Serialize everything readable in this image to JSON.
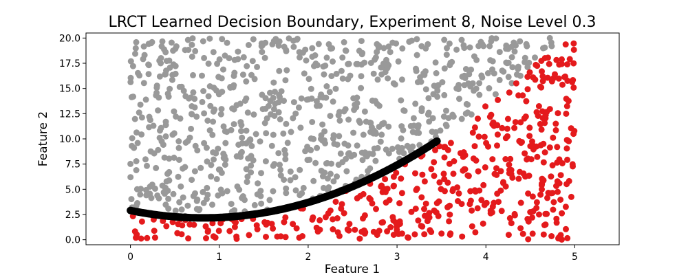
{
  "chart_data": {
    "type": "scatter",
    "title": "LRCT Learned Decision Boundary, Experiment 8, Noise Level 0.3",
    "xlabel": "Feature 1",
    "ylabel": "Feature 2",
    "xlim": [
      -0.5,
      5.5
    ],
    "ylim": [
      -0.5,
      20.5
    ],
    "xticks": [
      "0",
      "1",
      "2",
      "3",
      "4",
      "5"
    ],
    "yticks": [
      "0.0",
      "2.5",
      "5.0",
      "7.5",
      "10.0",
      "12.5",
      "15.0",
      "17.5",
      "20.0"
    ],
    "grid": false,
    "legend": "none",
    "colors": {
      "class_0": "#999999",
      "class_1": "#e41a1c",
      "boundary": "#000000"
    },
    "data_domain": {
      "x": [
        0,
        5
      ],
      "y": [
        0,
        20
      ]
    },
    "num_points": 1200,
    "boundary": {
      "form": "quadratic",
      "coefficients": [
        2.9,
        -1.8,
        1.1
      ],
      "x_range": [
        0,
        3.45
      ]
    },
    "series": [
      {
        "class": "class_0",
        "color": "#999999",
        "region": "above boundary"
      },
      {
        "class": "class_1",
        "color": "#e41a1c",
        "region": "below boundary"
      }
    ]
  }
}
